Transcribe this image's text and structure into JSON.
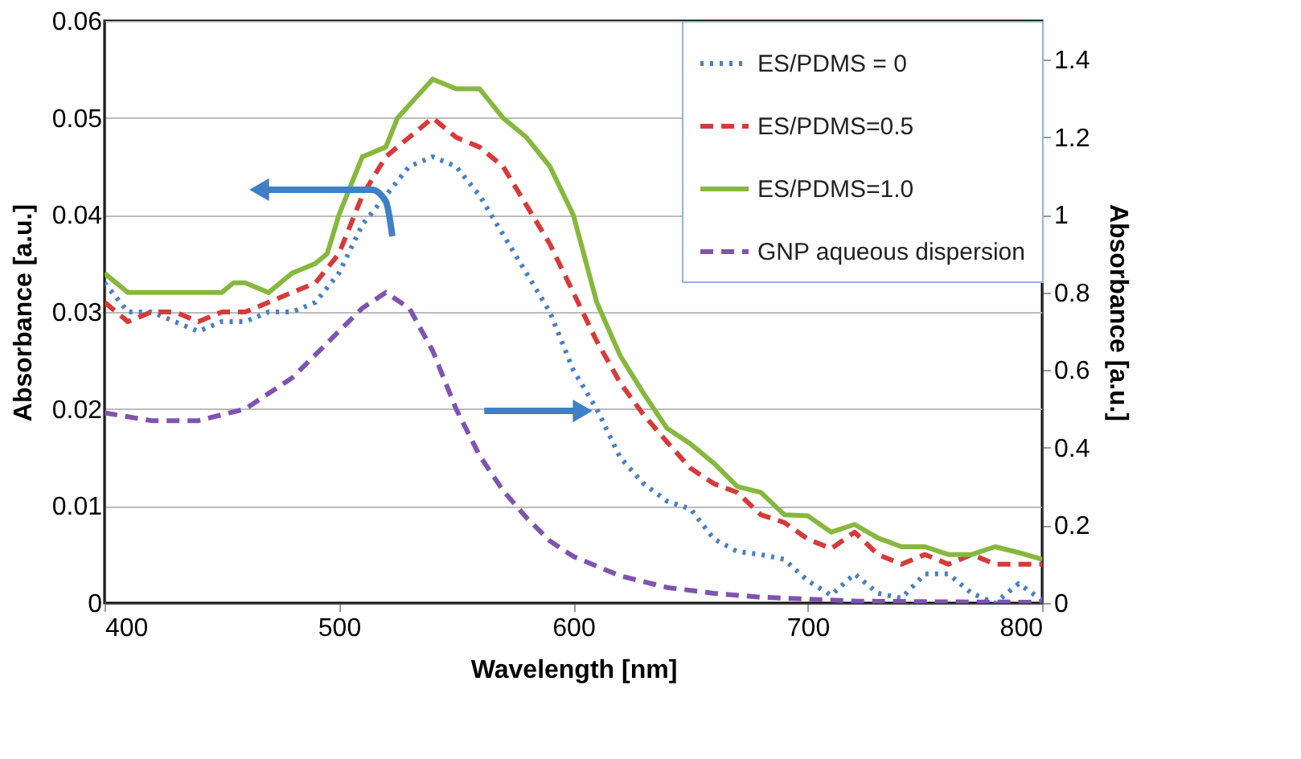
{
  "chart_data": {
    "type": "line",
    "xlabel": "Wavelength [nm]",
    "ylabel": "Absorbance  [a.u.]",
    "y2label": "Absorbance  [a.u.]",
    "xlim": [
      400,
      800
    ],
    "xticks": [
      400,
      500,
      600,
      700,
      800
    ],
    "ylim": [
      0,
      0.06
    ],
    "yticks": [
      0,
      0.01,
      0.02,
      0.03,
      0.04,
      0.05,
      0.06
    ],
    "y2lim": [
      0,
      1.5
    ],
    "y2ticks": [
      0,
      0.2,
      0.4,
      0.6,
      0.8,
      1,
      1.2,
      1.4
    ],
    "grid": "y",
    "legend": "top right",
    "series": [
      {
        "name": "ES/PDMS = 0",
        "color": "#4a7fc4",
        "line_style": "dotted",
        "x": [
          400,
          410,
          420,
          440,
          450,
          460,
          470,
          480,
          490,
          500,
          510,
          520,
          530,
          540,
          550,
          560,
          570,
          580,
          590,
          600,
          610,
          620,
          630,
          640,
          650,
          660,
          670,
          680,
          690,
          700,
          710,
          720,
          730,
          740,
          750,
          760,
          770,
          780,
          790,
          800
        ],
        "values": [
          0.033,
          0.03,
          0.03,
          0.028,
          0.029,
          0.029,
          0.03,
          0.03,
          0.031,
          0.034,
          0.039,
          0.042,
          0.045,
          0.046,
          0.045,
          0.042,
          0.038,
          0.034,
          0.03,
          0.024,
          0.02,
          0.015,
          0.0123,
          0.0105,
          0.0097,
          0.0066,
          0.0053,
          0.005,
          0.0045,
          0.0023,
          0.0008,
          0.003,
          0.001,
          0.0005,
          0.003,
          0.003,
          0.001,
          0.0,
          0.002,
          0.0003
        ]
      },
      {
        "name": "ES/PDMS=0.5",
        "color": "#d83a3a",
        "line_style": "dashed",
        "x": [
          400,
          410,
          420,
          430,
          440,
          450,
          460,
          470,
          480,
          490,
          500,
          510,
          520,
          530,
          540,
          550,
          560,
          570,
          580,
          590,
          600,
          610,
          620,
          630,
          640,
          650,
          660,
          670,
          680,
          690,
          700,
          710,
          720,
          730,
          740,
          750,
          760,
          770,
          780,
          790,
          800
        ],
        "values": [
          0.031,
          0.029,
          0.03,
          0.03,
          0.029,
          0.03,
          0.03,
          0.031,
          0.032,
          0.033,
          0.036,
          0.042,
          0.046,
          0.048,
          0.05,
          0.048,
          0.047,
          0.045,
          0.041,
          0.037,
          0.032,
          0.027,
          0.0227,
          0.0194,
          0.0166,
          0.0139,
          0.0123,
          0.0114,
          0.0091,
          0.0083,
          0.0066,
          0.0056,
          0.0073,
          0.005,
          0.004,
          0.005,
          0.004,
          0.005,
          0.004,
          0.004,
          0.004
        ]
      },
      {
        "name": "ES/PDMS=1.0",
        "color": "#86b83e",
        "line_style": "solid",
        "x": [
          400,
          410,
          420,
          430,
          440,
          450,
          455,
          460,
          470,
          480,
          490,
          495,
          500,
          510,
          520,
          525,
          540,
          550,
          560,
          570,
          580,
          590,
          600,
          610,
          620,
          630,
          640,
          650,
          660,
          670,
          680,
          690,
          700,
          710,
          720,
          730,
          740,
          750,
          760,
          770,
          780,
          790,
          800
        ],
        "values": [
          0.034,
          0.032,
          0.032,
          0.032,
          0.032,
          0.032,
          0.033,
          0.033,
          0.032,
          0.034,
          0.035,
          0.036,
          0.04,
          0.046,
          0.047,
          0.05,
          0.054,
          0.053,
          0.053,
          0.05,
          0.048,
          0.045,
          0.04,
          0.031,
          0.0255,
          0.0216,
          0.018,
          0.0164,
          0.0144,
          0.012,
          0.0114,
          0.0091,
          0.009,
          0.0073,
          0.0081,
          0.0067,
          0.0058,
          0.0058,
          0.005,
          0.005,
          0.0058,
          0.0052,
          0.0045
        ]
      },
      {
        "name": "GNP aqueous dispersion",
        "color": "#7f54b0",
        "line_style": "dashed",
        "axis": "y2",
        "x": [
          400,
          420,
          440,
          460,
          480,
          500,
          510,
          520,
          530,
          540,
          550,
          560,
          570,
          580,
          590,
          600,
          620,
          640,
          660,
          680,
          700,
          720,
          760,
          800
        ],
        "values": [
          0.49,
          0.47,
          0.47,
          0.5,
          0.58,
          0.7,
          0.76,
          0.8,
          0.76,
          0.65,
          0.5,
          0.38,
          0.29,
          0.22,
          0.16,
          0.12,
          0.07,
          0.04,
          0.025,
          0.015,
          0.01,
          0.005,
          0.003,
          0.002
        ]
      }
    ]
  }
}
